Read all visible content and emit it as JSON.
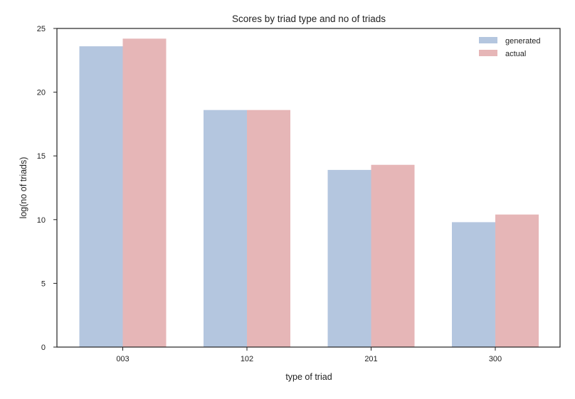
{
  "chart_data": {
    "type": "bar",
    "title": "Scores by triad type and no of triads",
    "xlabel": "type of triad",
    "ylabel": "log(no of triads)",
    "categories": [
      "003",
      "102",
      "201",
      "300"
    ],
    "series": [
      {
        "name": "generated",
        "color": "#b4c6df",
        "values": [
          23.6,
          18.6,
          13.9,
          9.8
        ]
      },
      {
        "name": "actual",
        "color": "#e6b6b7",
        "values": [
          24.2,
          18.6,
          14.3,
          10.4
        ]
      }
    ],
    "ylim": [
      0,
      25
    ],
    "yticks": [
      0,
      5,
      10,
      15,
      20,
      25
    ],
    "grid": false,
    "legend_position": "top-right"
  }
}
